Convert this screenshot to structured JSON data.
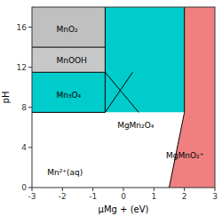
{
  "chart_data": {
    "type": "phase_diagram",
    "xlabel": "μMg + (eV)",
    "ylabel": "pH",
    "xlim": [
      -3,
      3
    ],
    "ylim": [
      0,
      18
    ],
    "xticks": [
      -3,
      -2,
      -1,
      0,
      1,
      2,
      3
    ],
    "yticks": [
      0,
      4,
      8,
      12,
      16
    ],
    "grid": false,
    "regions": [
      {
        "name": "MnO₂",
        "color": "#c0c0c0",
        "polygon": [
          [
            -3,
            14.0
          ],
          [
            -3,
            18
          ],
          [
            -0.6,
            18
          ],
          [
            -0.6,
            14.0
          ]
        ],
        "label_xy": [
          -2.2,
          15.8
        ]
      },
      {
        "name": "MnOOH",
        "color": "#c8c8c8",
        "polygon": [
          [
            -3,
            11.5
          ],
          [
            -3,
            14.0
          ],
          [
            -0.6,
            14.0
          ],
          [
            -0.6,
            11.5
          ]
        ],
        "label_xy": [
          -2.2,
          12.7
        ]
      },
      {
        "name": "Mn₃O₄",
        "color": "#00cccc",
        "polygon": [
          [
            -3,
            7.5
          ],
          [
            -3,
            11.5
          ],
          [
            -0.6,
            11.5
          ],
          [
            -0.6,
            7.5
          ]
        ],
        "label_xy": [
          -2.2,
          9.2
        ]
      },
      {
        "name": "MgMn₂O₄",
        "color": "#00cccc",
        "polygon": [
          [
            -0.6,
            7.5
          ],
          [
            -0.6,
            11.5
          ],
          [
            -0.6,
            14.0
          ],
          [
            -0.6,
            18
          ],
          [
            2.0,
            18
          ],
          [
            2.0,
            7.5
          ]
        ],
        "label_xy": [
          -0.2,
          6.2
        ]
      },
      {
        "name": "MgMnO₂⁺",
        "color": "#f08080",
        "polygon": [
          [
            2.0,
            7.5
          ],
          [
            2.0,
            18
          ],
          [
            3,
            18
          ],
          [
            3,
            0
          ],
          [
            1.5,
            0
          ]
        ],
        "label_xy": [
          1.4,
          3.2
        ]
      },
      {
        "name": "Mn²⁺(aq)",
        "color": "#ffffff",
        "polygon": [
          [
            -3,
            0
          ],
          [
            -3,
            7.5
          ],
          [
            -0.6,
            7.5
          ],
          [
            2.0,
            7.5
          ],
          [
            1.5,
            0
          ]
        ],
        "label_xy": [
          -2.5,
          1.5
        ]
      }
    ],
    "lines": [
      {
        "x": [
          -3,
          -0.6
        ],
        "y": [
          14.0,
          14.0
        ]
      },
      {
        "x": [
          -3,
          -0.6
        ],
        "y": [
          11.5,
          11.5
        ]
      },
      {
        "x": [
          -3,
          -0.6
        ],
        "y": [
          7.5,
          7.5
        ]
      },
      {
        "x": [
          -0.6,
          -0.6
        ],
        "y": [
          7.5,
          18
        ]
      },
      {
        "x": [
          2.0,
          2.0
        ],
        "y": [
          7.5,
          18
        ]
      },
      {
        "x": [
          1.5,
          2.0
        ],
        "y": [
          0,
          7.5
        ]
      },
      {
        "x": [
          -0.6,
          0.5
        ],
        "y": [
          11.5,
          7.5
        ]
      },
      {
        "x": [
          -0.6,
          0.3
        ],
        "y": [
          7.5,
          11.5
        ]
      }
    ]
  }
}
